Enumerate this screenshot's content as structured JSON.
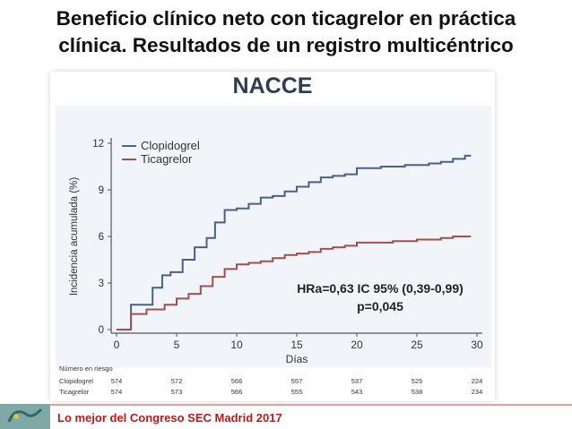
{
  "slide": {
    "title_line1": "Beneficio clínico neto con ticagrelor en práctica",
    "title_line2": "clínica. Resultados de un registro multicéntrico",
    "footer": "Lo mejor del Congreso SEC Madrid 2017"
  },
  "chart_data": {
    "type": "line",
    "title": "NACCE",
    "xlabel": "Días",
    "ylabel": "Incidencia acumulada (%)",
    "xlim": [
      0,
      30
    ],
    "ylim": [
      0,
      12
    ],
    "xticks": [
      "0",
      "5",
      "10",
      "15",
      "20",
      "25",
      "30"
    ],
    "yticks": [
      "0",
      "3",
      "6",
      "9",
      "12"
    ],
    "legend_position": "top-left",
    "series": [
      {
        "name": "Clopidogrel",
        "color": "#4a6088",
        "x": [
          0,
          1,
          1.2,
          2,
          3,
          3.8,
          4.5,
          5.5,
          6.5,
          7.5,
          8.2,
          9,
          10,
          11,
          12,
          13,
          14,
          15,
          16,
          17,
          18,
          19,
          20,
          21,
          22,
          23,
          24,
          25,
          26,
          27,
          28,
          29
        ],
        "y": [
          0,
          0,
          1.6,
          1.6,
          2.7,
          3.5,
          3.7,
          4.5,
          5.3,
          5.9,
          6.9,
          7.7,
          7.8,
          8.1,
          8.5,
          8.6,
          8.9,
          9.2,
          9.5,
          9.8,
          9.9,
          10.0,
          10.4,
          10.4,
          10.5,
          10.5,
          10.6,
          10.6,
          10.7,
          10.8,
          11.0,
          11.2
        ]
      },
      {
        "name": "Ticagrelor",
        "color": "#a24f4f",
        "x": [
          0,
          1.2,
          2.5,
          4,
          5,
          6,
          7,
          8,
          9,
          10,
          11,
          12,
          13,
          14,
          15,
          16,
          17,
          18,
          19,
          20,
          21,
          22,
          23,
          24,
          25,
          26,
          27,
          28,
          29
        ],
        "y": [
          0,
          1.0,
          1.3,
          1.6,
          2.0,
          2.3,
          2.8,
          3.4,
          3.9,
          4.2,
          4.3,
          4.4,
          4.6,
          4.8,
          4.9,
          5.0,
          5.2,
          5.3,
          5.4,
          5.6,
          5.6,
          5.6,
          5.7,
          5.7,
          5.8,
          5.8,
          5.9,
          6.0,
          6.0
        ]
      }
    ],
    "annotations": [
      "HRa=0,63 IC 95% (0,39-0,99)",
      "p=0,045"
    ],
    "risk_table": {
      "header": "Número en riesgo",
      "rows": [
        {
          "label": "Clopidogrel",
          "values": [
            "574",
            "572",
            "566",
            "557",
            "537",
            "525",
            "224"
          ]
        },
        {
          "label": "Ticagrelor",
          "values": [
            "574",
            "573",
            "566",
            "555",
            "543",
            "538",
            "234"
          ]
        }
      ]
    }
  }
}
